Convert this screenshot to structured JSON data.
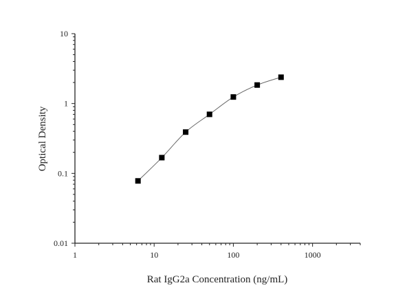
{
  "chart_data": {
    "type": "scatter",
    "title": "",
    "xlabel": "Rat IgG2a Concentration (ng/mL)",
    "ylabel": "Optical Density",
    "x_scale": "log",
    "y_scale": "log",
    "xlim": [
      1,
      4000
    ],
    "ylim": [
      0.01,
      10
    ],
    "x_ticks": [
      {
        "value": 1,
        "label": "1"
      },
      {
        "value": 10,
        "label": "10"
      },
      {
        "value": 100,
        "label": "100"
      },
      {
        "value": 1000,
        "label": "1000"
      }
    ],
    "y_ticks": [
      {
        "value": 0.01,
        "label": "0.01"
      },
      {
        "value": 0.1,
        "label": "0.1"
      },
      {
        "value": 1,
        "label": "1"
      },
      {
        "value": 10,
        "label": "10"
      }
    ],
    "grid": false,
    "fit_curve": true,
    "marker": "square",
    "colors": {
      "marker": "#000000",
      "curve": "#666666",
      "axis": "#222222"
    },
    "x": [
      6.25,
      12.5,
      25,
      50,
      100,
      200,
      400
    ],
    "y": [
      0.078,
      0.168,
      0.39,
      0.7,
      1.24,
      1.84,
      2.38
    ]
  }
}
